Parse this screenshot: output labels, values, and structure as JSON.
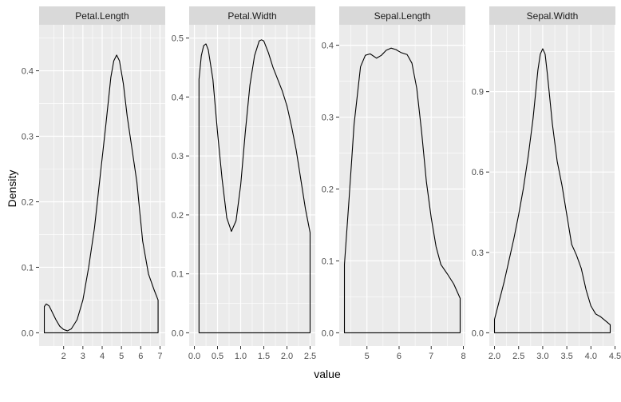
{
  "chart_data": {
    "type": "area",
    "facet": "wrap",
    "scales": "free",
    "xlabel": "value",
    "ylabel": "Density",
    "theme": {
      "panel_bg": "#ebebeb",
      "grid_major": "#ffffff",
      "strip_bg": "#d9d9d9",
      "text_color": "#4d4d4d",
      "title_color": "#000000",
      "line_color": "#000000"
    },
    "panels": [
      {
        "title": "Petal.Length",
        "xlim": [
          1.0,
          7.0
        ],
        "ylim": [
          0,
          0.45
        ],
        "xticks": [
          2,
          3,
          4,
          5,
          6,
          7
        ],
        "yticks": [
          0.0,
          0.1,
          0.2,
          0.3,
          0.4
        ],
        "ytick_labels": [
          "0.0",
          "0.1",
          "0.2",
          "0.3",
          "0.4"
        ],
        "points": [
          [
            1.0,
            0.04
          ],
          [
            1.1,
            0.044
          ],
          [
            1.25,
            0.041
          ],
          [
            1.4,
            0.032
          ],
          [
            1.6,
            0.02
          ],
          [
            1.8,
            0.01
          ],
          [
            2.0,
            0.005
          ],
          [
            2.2,
            0.003
          ],
          [
            2.4,
            0.006
          ],
          [
            2.7,
            0.02
          ],
          [
            3.0,
            0.05
          ],
          [
            3.3,
            0.1
          ],
          [
            3.6,
            0.16
          ],
          [
            3.9,
            0.24
          ],
          [
            4.2,
            0.32
          ],
          [
            4.45,
            0.39
          ],
          [
            4.6,
            0.415
          ],
          [
            4.75,
            0.424
          ],
          [
            4.9,
            0.415
          ],
          [
            5.1,
            0.38
          ],
          [
            5.3,
            0.33
          ],
          [
            5.5,
            0.29
          ],
          [
            5.8,
            0.23
          ],
          [
            6.1,
            0.14
          ],
          [
            6.4,
            0.09
          ],
          [
            6.7,
            0.065
          ],
          [
            6.9,
            0.05
          ]
        ]
      },
      {
        "title": "Petal.Width",
        "xlim": [
          0.0,
          2.5
        ],
        "ylim": [
          0,
          0.5
        ],
        "xticks": [
          0.0,
          0.5,
          1.0,
          1.5,
          2.0,
          2.5
        ],
        "xtick_labels": [
          "0.0",
          "0.5",
          "1.0",
          "1.5",
          "2.0",
          "2.5"
        ],
        "yticks": [
          0.0,
          0.1,
          0.2,
          0.3,
          0.4,
          0.5
        ],
        "ytick_labels": [
          "0.0",
          "0.1",
          "0.2",
          "0.3",
          "0.4",
          "0.5"
        ],
        "points": [
          [
            0.1,
            0.43
          ],
          [
            0.15,
            0.47
          ],
          [
            0.2,
            0.487
          ],
          [
            0.25,
            0.49
          ],
          [
            0.3,
            0.48
          ],
          [
            0.4,
            0.43
          ],
          [
            0.5,
            0.34
          ],
          [
            0.6,
            0.26
          ],
          [
            0.7,
            0.195
          ],
          [
            0.8,
            0.172
          ],
          [
            0.9,
            0.19
          ],
          [
            1.0,
            0.25
          ],
          [
            1.1,
            0.34
          ],
          [
            1.2,
            0.42
          ],
          [
            1.3,
            0.47
          ],
          [
            1.4,
            0.495
          ],
          [
            1.45,
            0.497
          ],
          [
            1.5,
            0.495
          ],
          [
            1.6,
            0.475
          ],
          [
            1.7,
            0.45
          ],
          [
            1.8,
            0.43
          ],
          [
            1.9,
            0.41
          ],
          [
            2.0,
            0.385
          ],
          [
            2.1,
            0.35
          ],
          [
            2.2,
            0.31
          ],
          [
            2.3,
            0.26
          ],
          [
            2.4,
            0.21
          ],
          [
            2.5,
            0.17
          ]
        ]
      },
      {
        "title": "Sepal.Length",
        "xlim": [
          4.3,
          7.9
        ],
        "ylim": [
          0,
          0.41
        ],
        "xticks": [
          5,
          6,
          7,
          8
        ],
        "yticks": [
          0.0,
          0.1,
          0.2,
          0.3,
          0.4
        ],
        "ytick_labels": [
          "0.0",
          "0.1",
          "0.2",
          "0.3",
          "0.4"
        ],
        "points": [
          [
            4.3,
            0.095
          ],
          [
            4.45,
            0.19
          ],
          [
            4.6,
            0.29
          ],
          [
            4.8,
            0.37
          ],
          [
            4.95,
            0.386
          ],
          [
            5.1,
            0.388
          ],
          [
            5.3,
            0.382
          ],
          [
            5.45,
            0.386
          ],
          [
            5.6,
            0.393
          ],
          [
            5.75,
            0.396
          ],
          [
            5.9,
            0.394
          ],
          [
            6.05,
            0.39
          ],
          [
            6.25,
            0.387
          ],
          [
            6.4,
            0.375
          ],
          [
            6.55,
            0.34
          ],
          [
            6.7,
            0.28
          ],
          [
            6.85,
            0.21
          ],
          [
            7.0,
            0.16
          ],
          [
            7.15,
            0.12
          ],
          [
            7.3,
            0.095
          ],
          [
            7.5,
            0.082
          ],
          [
            7.7,
            0.068
          ],
          [
            7.9,
            0.048
          ]
        ]
      },
      {
        "title": "Sepal.Width",
        "xlim": [
          2.0,
          4.4
        ],
        "ylim": [
          0,
          1.1
        ],
        "xticks": [
          2.0,
          2.5,
          3.0,
          3.5,
          4.0,
          4.5
        ],
        "xtick_labels": [
          "2.0",
          "2.5",
          "3.0",
          "3.5",
          "4.0",
          "4.5"
        ],
        "yticks": [
          0.0,
          0.3,
          0.6,
          0.9
        ],
        "ytick_labels": [
          "0.0",
          "0.3",
          "0.6",
          "0.9"
        ],
        "points": [
          [
            2.0,
            0.05
          ],
          [
            2.1,
            0.12
          ],
          [
            2.2,
            0.19
          ],
          [
            2.3,
            0.27
          ],
          [
            2.4,
            0.35
          ],
          [
            2.5,
            0.44
          ],
          [
            2.6,
            0.54
          ],
          [
            2.7,
            0.66
          ],
          [
            2.8,
            0.8
          ],
          [
            2.9,
            0.98
          ],
          [
            2.95,
            1.04
          ],
          [
            3.0,
            1.06
          ],
          [
            3.05,
            1.04
          ],
          [
            3.1,
            0.96
          ],
          [
            3.2,
            0.78
          ],
          [
            3.3,
            0.64
          ],
          [
            3.4,
            0.55
          ],
          [
            3.5,
            0.44
          ],
          [
            3.6,
            0.33
          ],
          [
            3.7,
            0.29
          ],
          [
            3.8,
            0.24
          ],
          [
            3.9,
            0.16
          ],
          [
            4.0,
            0.1
          ],
          [
            4.1,
            0.07
          ],
          [
            4.2,
            0.06
          ],
          [
            4.3,
            0.045
          ],
          [
            4.4,
            0.03
          ]
        ]
      }
    ]
  }
}
